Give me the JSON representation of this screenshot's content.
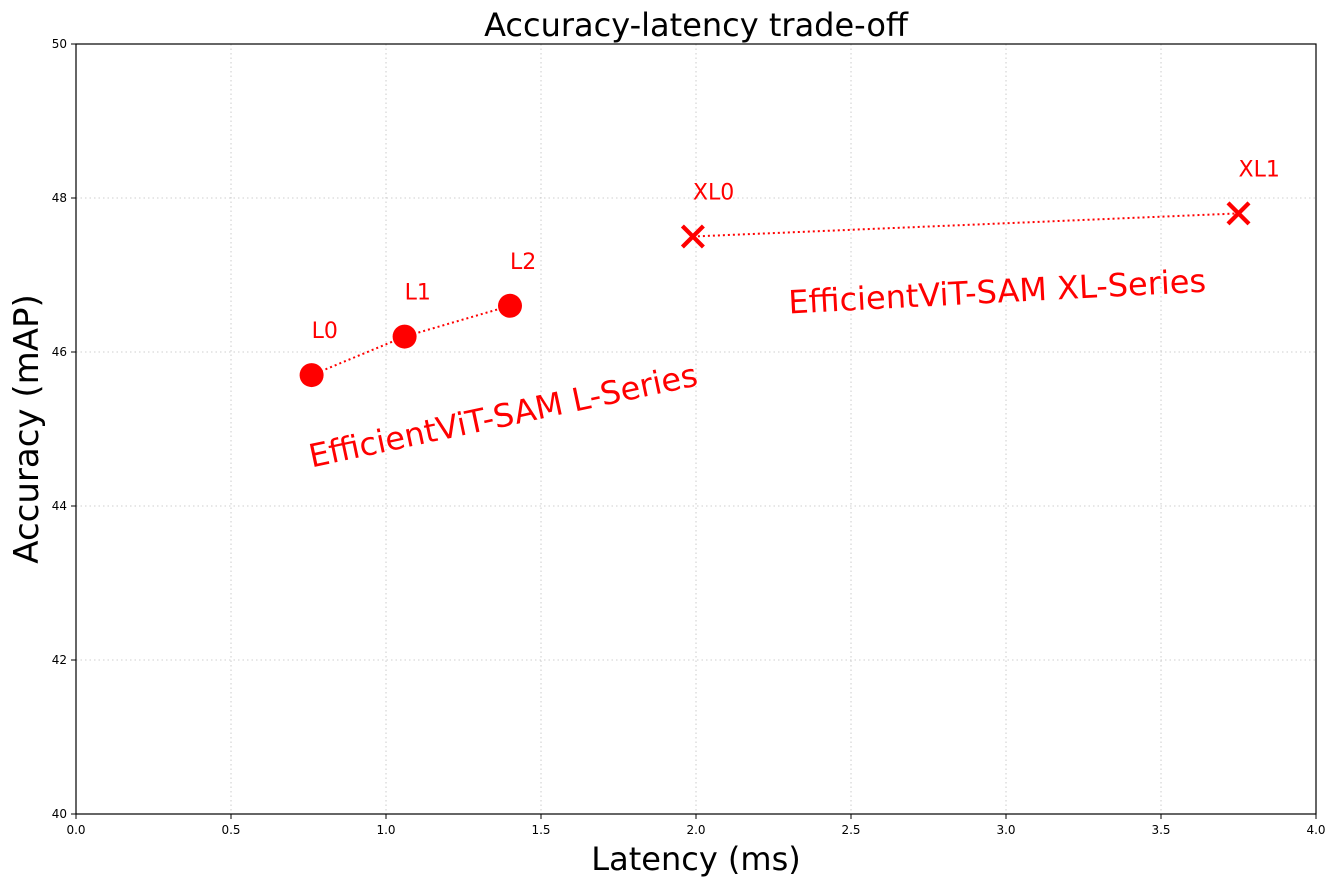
{
  "chart_data": {
    "type": "scatter",
    "title": "Accuracy-latency trade-off",
    "xlabel": "Latency (ms)",
    "ylabel": "Accuracy (mAP)",
    "xlim": [
      0,
      4
    ],
    "ylim": [
      40,
      50
    ],
    "x_ticks": [
      0.0,
      0.5,
      1.0,
      1.5,
      2.0,
      2.5,
      3.0,
      3.5,
      4.0
    ],
    "y_ticks": [
      40,
      42,
      44,
      46,
      48,
      50
    ],
    "grid": true,
    "series": [
      {
        "name": "EfficientViT-SAM L-Series",
        "marker": "circle",
        "color": "#ff0000",
        "connected": true,
        "points": [
          {
            "label": "L0",
            "x": 0.76,
            "y": 45.7
          },
          {
            "label": "L1",
            "x": 1.06,
            "y": 46.2
          },
          {
            "label": "L2",
            "x": 1.4,
            "y": 46.6
          }
        ]
      },
      {
        "name": "EfficientViT-SAM XL-Series",
        "marker": "x",
        "color": "#ff0000",
        "connected": true,
        "points": [
          {
            "label": "XL0",
            "x": 1.99,
            "y": 47.5
          },
          {
            "label": "XL1",
            "x": 3.75,
            "y": 47.8
          }
        ]
      }
    ],
    "annotations": [
      {
        "text": "EfficientViT-SAM L-Series",
        "x": 0.76,
        "y": 44.5,
        "rotation": -12
      },
      {
        "text": "EfficientViT-SAM XL-Series",
        "x": 2.3,
        "y": 46.5,
        "rotation": -3
      }
    ]
  }
}
